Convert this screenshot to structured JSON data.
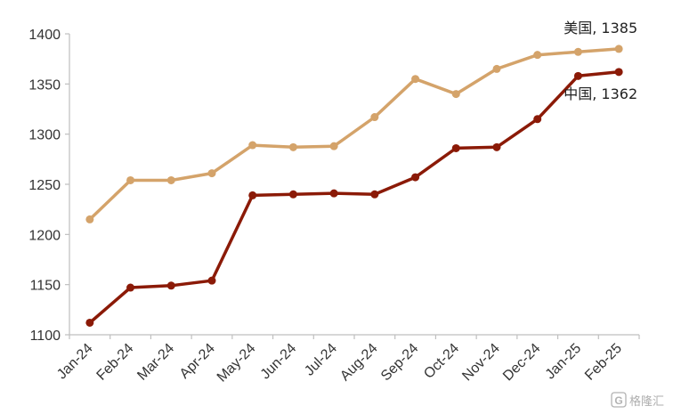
{
  "chart_data": {
    "type": "line",
    "title": "",
    "xlabel": "",
    "ylabel": "",
    "categories": [
      "Jan-24",
      "Feb-24",
      "Mar-24",
      "Apr-24",
      "May-24",
      "Jun-24",
      "Jul-24",
      "Aug-24",
      "Sep-24",
      "Oct-24",
      "Nov-24",
      "Dec-24",
      "Jan-25",
      "Feb-25"
    ],
    "ylim": [
      1100,
      1400
    ],
    "yticks": [
      1100,
      1150,
      1200,
      1250,
      1300,
      1350,
      1400
    ],
    "grid": false,
    "series": [
      {
        "name": "美国",
        "color": "#d4a36a",
        "end_label": "美国, 1385",
        "values": [
          1215,
          1254,
          1254,
          1261,
          1289,
          1287,
          1288,
          1317,
          1355,
          1340,
          1365,
          1379,
          1382,
          1385
        ]
      },
      {
        "name": "中国",
        "color": "#8b1a07",
        "end_label": "中国, 1362",
        "values": [
          1112,
          1147,
          1149,
          1154,
          1239,
          1240,
          1241,
          1240,
          1257,
          1286,
          1287,
          1315,
          1358,
          1362
        ]
      }
    ]
  },
  "watermark": {
    "icon": "gelonghui-logo-icon",
    "text": "格隆汇"
  }
}
